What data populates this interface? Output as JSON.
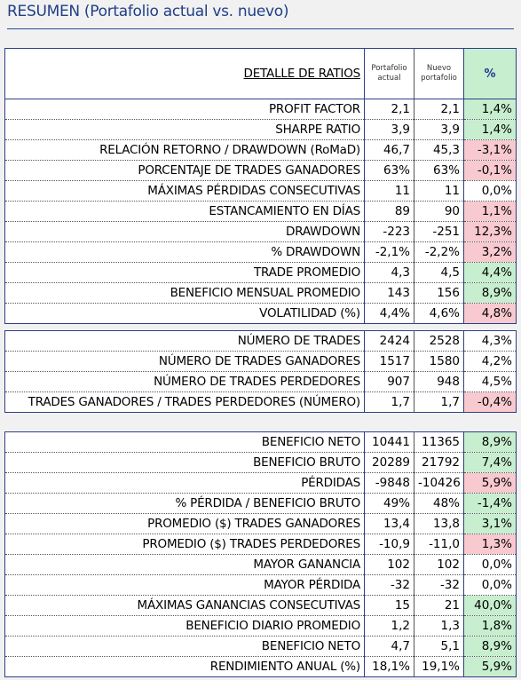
{
  "title": "RESUMEN (Portafolio actual vs. nuevo)",
  "header": {
    "ratios_label": "DETALLE DE RATIOS",
    "col_actual": "Portafolio actual",
    "col_nuevo": "Nuevo portafolio",
    "col_pct": "%"
  },
  "section1": [
    {
      "label": "PROFIT FACTOR",
      "actual": "2,1",
      "nuevo": "2,1",
      "pct": "1,4%",
      "sign": "pos"
    },
    {
      "label": "SHARPE RATIO",
      "actual": "3,9",
      "nuevo": "3,9",
      "pct": "1,4%",
      "sign": "pos"
    },
    {
      "label": "RELACIÓN RETORNO / DRAWDOWN (RoMaD)",
      "actual": "46,7",
      "nuevo": "45,3",
      "pct": "-3,1%",
      "sign": "neg"
    },
    {
      "label": "PORCENTAJE DE TRADES GANADORES",
      "actual": "63%",
      "nuevo": "63%",
      "pct": "-0,1%",
      "sign": "neg"
    },
    {
      "label": "MÁXIMAS PÉRDIDAS CONSECUTIVAS",
      "actual": "11",
      "nuevo": "11",
      "pct": "0,0%",
      "sign": "zero"
    },
    {
      "label": "ESTANCAMIENTO EN DÍAS",
      "actual": "89",
      "nuevo": "90",
      "pct": "1,1%",
      "sign": "neg"
    },
    {
      "label": "DRAWDOWN",
      "actual": "-223",
      "nuevo": "-251",
      "pct": "12,3%",
      "sign": "neg"
    },
    {
      "label": "% DRAWDOWN",
      "actual": "-2,1%",
      "nuevo": "-2,2%",
      "pct": "3,2%",
      "sign": "neg"
    },
    {
      "label": "TRADE PROMEDIO",
      "actual": "4,3",
      "nuevo": "4,5",
      "pct": "4,4%",
      "sign": "pos"
    },
    {
      "label": "BENEFICIO MENSUAL PROMEDIO",
      "actual": "143",
      "nuevo": "156",
      "pct": "8,9%",
      "sign": "pos"
    },
    {
      "label": "VOLATILIDAD (%)",
      "actual": "4,4%",
      "nuevo": "4,6%",
      "pct": "4,8%",
      "sign": "neg"
    }
  ],
  "section2": [
    {
      "label": "NÚMERO DE TRADES",
      "actual": "2424",
      "nuevo": "2528",
      "pct": "4,3%",
      "sign": "zero"
    },
    {
      "label": "NÚMERO DE TRADES GANADORES",
      "actual": "1517",
      "nuevo": "1580",
      "pct": "4,2%",
      "sign": "zero"
    },
    {
      "label": "NÚMERO DE TRADES PERDEDORES",
      "actual": "907",
      "nuevo": "948",
      "pct": "4,5%",
      "sign": "zero"
    },
    {
      "label": "TRADES GANADORES / TRADES PERDEDORES (NÚMERO)",
      "actual": "1,7",
      "nuevo": "1,7",
      "pct": "-0,4%",
      "sign": "neg"
    }
  ],
  "section3": [
    {
      "label": "BENEFICIO NETO",
      "actual": "10441",
      "nuevo": "11365",
      "pct": "8,9%",
      "sign": "pos"
    },
    {
      "label": "BENEFICIO BRUTO",
      "actual": "20289",
      "nuevo": "21792",
      "pct": "7,4%",
      "sign": "pos"
    },
    {
      "label": "PÉRDIDAS",
      "actual": "-9848",
      "nuevo": "-10426",
      "pct": "5,9%",
      "sign": "neg"
    },
    {
      "label": "% PÉRDIDA / BENEFICIO BRUTO",
      "actual": "49%",
      "nuevo": "48%",
      "pct": "-1,4%",
      "sign": "pos"
    },
    {
      "label": "PROMEDIO ($) TRADES GANADORES",
      "actual": "13,4",
      "nuevo": "13,8",
      "pct": "3,1%",
      "sign": "pos"
    },
    {
      "label": "PROMEDIO ($) TRADES PERDEDORES",
      "actual": "-10,9",
      "nuevo": "-11,0",
      "pct": "1,3%",
      "sign": "neg"
    },
    {
      "label": "MAYOR GANANCIA",
      "actual": "102",
      "nuevo": "102",
      "pct": "0,0%",
      "sign": "zero"
    },
    {
      "label": "MAYOR PÉRDIDA",
      "actual": "-32",
      "nuevo": "-32",
      "pct": "0,0%",
      "sign": "zero"
    },
    {
      "label": "MÁXIMAS GANANCIAS CONSECUTIVAS",
      "actual": "15",
      "nuevo": "21",
      "pct": "40,0%",
      "sign": "pos"
    },
    {
      "label": "BENEFICIO DIARIO PROMEDIO",
      "actual": "1,2",
      "nuevo": "1,3",
      "pct": "1,8%",
      "sign": "pos"
    },
    {
      "label": "BENEFICIO NETO",
      "actual": "4,7",
      "nuevo": "5,1",
      "pct": "8,9%",
      "sign": "pos"
    },
    {
      "label": "RENDIMIENTO ANUAL (%)",
      "actual": "18,1%",
      "nuevo": "19,1%",
      "pct": "5,9%",
      "sign": "pos"
    }
  ]
}
